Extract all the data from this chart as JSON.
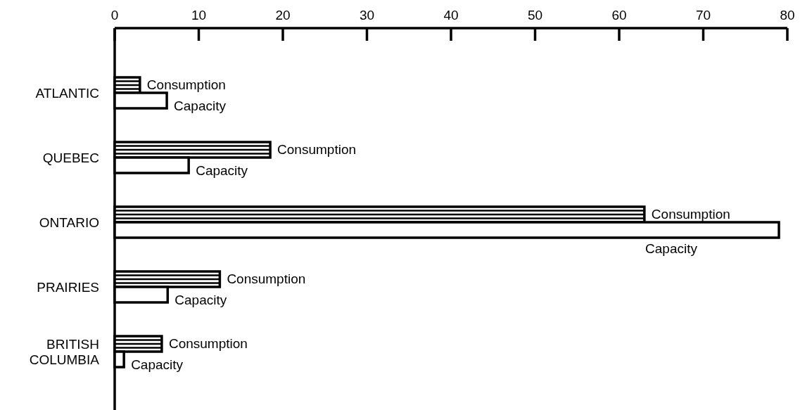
{
  "chart_data": {
    "type": "bar",
    "orientation": "horizontal",
    "categories": [
      "ATLANTIC",
      "QUEBEC",
      "ONTARIO",
      "PRAIRIES",
      "BRITISH\nCOLUMBIA"
    ],
    "series": [
      {
        "name": "Consumption",
        "color": "#000000",
        "values": [
          3.0,
          18.5,
          63.0,
          12.5,
          5.6
        ]
      },
      {
        "name": "Capacity",
        "color": "#ffffff",
        "values": [
          6.2,
          8.8,
          79.0,
          6.3,
          1.1
        ]
      }
    ],
    "xlim": [
      0,
      80
    ],
    "xticks": [
      0,
      10,
      20,
      30,
      40,
      50,
      60,
      70,
      80
    ],
    "grid": false
  }
}
